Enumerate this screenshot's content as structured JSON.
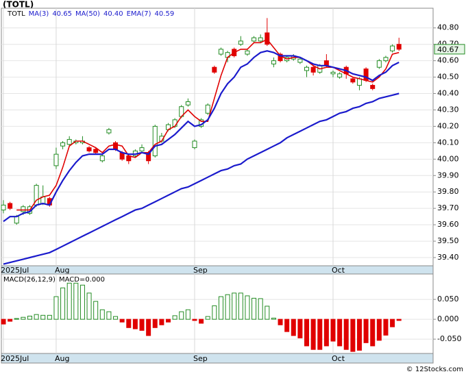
{
  "chart_data": [
    {
      "type": "candlestick",
      "title": "(TOTL)",
      "ticker": "TOTL",
      "categories": [
        "2025Jul",
        null,
        null,
        null,
        null,
        null,
        null,
        null,
        "Aug",
        null,
        null,
        null,
        null,
        null,
        null,
        null,
        null,
        null,
        null,
        null,
        null,
        null,
        null,
        null,
        null,
        null,
        null,
        null,
        null,
        "Sep",
        null,
        null,
        null,
        null,
        null,
        null,
        null,
        null,
        null,
        null,
        null,
        null,
        null,
        null,
        null,
        null,
        null,
        null,
        null,
        null,
        "Oct",
        null,
        null,
        null,
        null,
        null,
        null,
        null,
        null,
        null,
        null
      ],
      "open": [
        39.69,
        39.73,
        39.61,
        39.68,
        39.67,
        39.72,
        39.73,
        39.76,
        39.96,
        40.08,
        40.09,
        40.1,
        40.1,
        40.07,
        40.06,
        39.99,
        40.16,
        40.1,
        40.04,
        40.02,
        40.02,
        40.05,
        40.04,
        40.02,
        40.11,
        40.18,
        40.2,
        40.26,
        40.33,
        40.07,
        40.2,
        40.28,
        40.56,
        40.64,
        40.62,
        40.67,
        40.7,
        40.64,
        40.72,
        40.72,
        40.77,
        40.58,
        40.64,
        40.6,
        40.61,
        40.59,
        40.54,
        40.56,
        40.53,
        40.6,
        40.52,
        40.5,
        40.56,
        40.49,
        40.45,
        40.55,
        40.45,
        40.56,
        40.6,
        40.66,
        40.7
      ],
      "high": [
        39.75,
        39.74,
        39.66,
        39.72,
        39.72,
        39.85,
        39.84,
        39.77,
        40.07,
        40.11,
        40.14,
        40.12,
        40.14,
        40.08,
        40.07,
        40.03,
        40.19,
        40.11,
        40.05,
        40.03,
        40.06,
        40.09,
        40.05,
        40.21,
        40.16,
        40.22,
        40.25,
        40.33,
        40.37,
        40.12,
        40.25,
        40.34,
        40.57,
        40.68,
        40.66,
        40.68,
        40.75,
        40.67,
        40.75,
        40.76,
        40.86,
        40.62,
        40.65,
        40.63,
        40.64,
        40.62,
        40.57,
        40.57,
        40.58,
        40.64,
        40.54,
        40.53,
        40.57,
        40.5,
        40.5,
        40.56,
        40.46,
        40.61,
        40.63,
        40.7,
        40.74
      ],
      "low": [
        39.67,
        39.69,
        39.6,
        39.66,
        39.66,
        39.71,
        39.72,
        39.71,
        39.94,
        40.06,
        40.08,
        40.09,
        40.09,
        40.04,
        40.03,
        39.98,
        40.15,
        40.05,
        39.99,
        39.97,
        40.01,
        40.04,
        39.97,
        40.01,
        40.1,
        40.17,
        40.19,
        40.25,
        40.32,
        40.06,
        40.19,
        40.27,
        40.52,
        40.63,
        40.59,
        40.62,
        40.69,
        40.63,
        40.71,
        40.71,
        40.69,
        40.56,
        40.59,
        40.59,
        40.6,
        40.58,
        40.5,
        40.51,
        40.52,
        40.56,
        40.5,
        40.49,
        40.49,
        40.46,
        40.42,
        40.47,
        40.42,
        40.55,
        40.59,
        40.65,
        40.66
      ],
      "close": [
        39.72,
        39.7,
        39.65,
        39.71,
        39.71,
        39.84,
        39.77,
        39.72,
        40.03,
        40.1,
        40.12,
        40.11,
        40.11,
        40.05,
        40.04,
        40.02,
        40.18,
        40.06,
        40.0,
        39.99,
        40.05,
        40.07,
        39.99,
        40.2,
        40.14,
        40.21,
        40.24,
        40.32,
        40.35,
        40.11,
        40.24,
        40.33,
        40.53,
        40.67,
        40.65,
        40.63,
        40.72,
        40.66,
        40.74,
        40.74,
        40.7,
        40.6,
        40.6,
        40.62,
        40.63,
        40.61,
        40.56,
        40.53,
        40.57,
        40.57,
        40.53,
        40.52,
        40.52,
        40.47,
        40.49,
        40.48,
        40.43,
        40.6,
        40.62,
        40.69,
        40.67
      ],
      "up_color": "#228b22",
      "down_color": "#e00000",
      "series": [
        {
          "name": "MA(3)",
          "legend_value": "40.65",
          "color": "#e00000",
          "values": [
            null,
            null,
            39.69,
            39.69,
            39.69,
            39.75,
            39.77,
            39.78,
            39.84,
            39.95,
            40.08,
            40.11,
            40.11,
            40.09,
            40.07,
            40.04,
            40.08,
            40.09,
            40.08,
            40.02,
            40.01,
            40.04,
            40.04,
            40.09,
            40.11,
            40.18,
            40.2,
            40.26,
            40.3,
            40.26,
            40.23,
            40.23,
            40.37,
            40.51,
            40.62,
            40.65,
            40.67,
            40.67,
            40.71,
            40.71,
            40.73,
            40.68,
            40.63,
            40.61,
            40.62,
            40.62,
            40.6,
            40.57,
            40.55,
            40.56,
            40.56,
            40.54,
            40.52,
            40.5,
            40.49,
            40.48,
            40.47,
            40.5,
            40.55,
            40.64,
            40.65
          ]
        },
        {
          "name": "MA(50)",
          "legend_value": "40.40",
          "color": "#1a1acc",
          "values": [
            39.36,
            39.37,
            39.38,
            39.39,
            39.4,
            39.41,
            39.42,
            39.43,
            39.45,
            39.47,
            39.49,
            39.51,
            39.53,
            39.55,
            39.57,
            39.59,
            39.61,
            39.63,
            39.65,
            39.67,
            39.69,
            39.7,
            39.72,
            39.74,
            39.76,
            39.78,
            39.8,
            39.82,
            39.83,
            39.85,
            39.87,
            39.89,
            39.91,
            39.93,
            39.94,
            39.96,
            39.97,
            40.0,
            40.02,
            40.04,
            40.06,
            40.08,
            40.1,
            40.13,
            40.15,
            40.17,
            40.19,
            40.21,
            40.23,
            40.24,
            40.26,
            40.28,
            40.29,
            40.31,
            40.32,
            40.34,
            40.35,
            40.37,
            40.38,
            40.39,
            40.4
          ]
        },
        {
          "name": "EMA(7)",
          "legend_value": "40.59",
          "color": "#1a1acc",
          "values": [
            39.62,
            39.65,
            39.65,
            39.67,
            39.68,
            39.72,
            39.73,
            39.72,
            39.8,
            39.87,
            39.93,
            39.98,
            40.02,
            40.03,
            40.03,
            40.03,
            40.06,
            40.06,
            40.04,
            40.03,
            40.03,
            40.04,
            40.03,
            40.08,
            40.09,
            40.12,
            40.15,
            40.19,
            40.23,
            40.2,
            40.21,
            40.24,
            40.31,
            40.4,
            40.46,
            40.5,
            40.56,
            40.58,
            40.62,
            40.65,
            40.66,
            40.65,
            40.63,
            40.63,
            40.63,
            40.62,
            40.6,
            40.58,
            40.57,
            40.57,
            40.56,
            40.55,
            40.54,
            40.52,
            40.51,
            40.5,
            40.48,
            40.51,
            40.53,
            40.57,
            40.59
          ]
        }
      ],
      "last_price": "40.67",
      "ylim": [
        39.35,
        40.92
      ],
      "yticks": [
        {
          "value": 39.4,
          "label": "39.40"
        },
        {
          "value": 39.5,
          "label": "39.50"
        },
        {
          "value": 39.6,
          "label": "39.60"
        },
        {
          "value": 39.7,
          "label": "39.70"
        },
        {
          "value": 39.8,
          "label": "39.80"
        },
        {
          "value": 39.9,
          "label": "39.90"
        },
        {
          "value": 40.0,
          "label": "40.00"
        },
        {
          "value": 40.1,
          "label": "40.10"
        },
        {
          "value": 40.2,
          "label": "40.20"
        },
        {
          "value": 40.3,
          "label": "40.30"
        },
        {
          "value": 40.4,
          "label": "40.40"
        },
        {
          "value": 40.5,
          "label": "40.50"
        },
        {
          "value": 40.6,
          "label": "40.60"
        },
        {
          "value": 40.7,
          "label": "40.70"
        },
        {
          "value": 40.8,
          "label": "40.80"
        }
      ]
    },
    {
      "type": "bar",
      "title": "MACD(26,12,9)",
      "subtitle": "MACD=0.000",
      "categories": [
        "2025Jul",
        null,
        null,
        null,
        null,
        null,
        null,
        null,
        "Aug",
        null,
        null,
        null,
        null,
        null,
        null,
        null,
        null,
        null,
        null,
        null,
        null,
        null,
        null,
        null,
        null,
        null,
        null,
        null,
        null,
        "Sep",
        null,
        null,
        null,
        null,
        null,
        null,
        null,
        null,
        null,
        null,
        null,
        null,
        null,
        null,
        null,
        null,
        null,
        null,
        null,
        null,
        "Oct",
        null,
        null,
        null,
        null,
        null,
        null,
        null,
        null,
        null,
        null
      ],
      "values": [
        -0.012,
        -0.005,
        0.002,
        0.005,
        0.008,
        0.012,
        0.01,
        0.01,
        0.057,
        0.079,
        0.091,
        0.091,
        0.086,
        0.066,
        0.045,
        0.024,
        0.019,
        0.007,
        -0.007,
        -0.021,
        -0.024,
        -0.028,
        -0.041,
        -0.021,
        -0.014,
        -0.007,
        0.009,
        0.019,
        0.024,
        -0.003,
        -0.01,
        0.007,
        0.034,
        0.057,
        0.062,
        0.066,
        0.066,
        0.059,
        0.053,
        0.052,
        0.033,
        0.003,
        -0.014,
        -0.031,
        -0.041,
        -0.047,
        -0.067,
        -0.076,
        -0.076,
        -0.067,
        -0.055,
        -0.067,
        -0.076,
        -0.081,
        -0.078,
        -0.059,
        -0.067,
        -0.053,
        -0.04,
        -0.019,
        -0.003
      ],
      "up_color": "#228b22",
      "down_color": "#e00000",
      "ylim": [
        -0.086,
        0.114
      ],
      "yticks": [
        {
          "value": -0.05,
          "label": "-0.050"
        },
        {
          "value": 0,
          "label": "0.000"
        },
        {
          "value": 0.05,
          "label": "0.050"
        }
      ]
    }
  ],
  "watermark": "© 12Stocks.com"
}
